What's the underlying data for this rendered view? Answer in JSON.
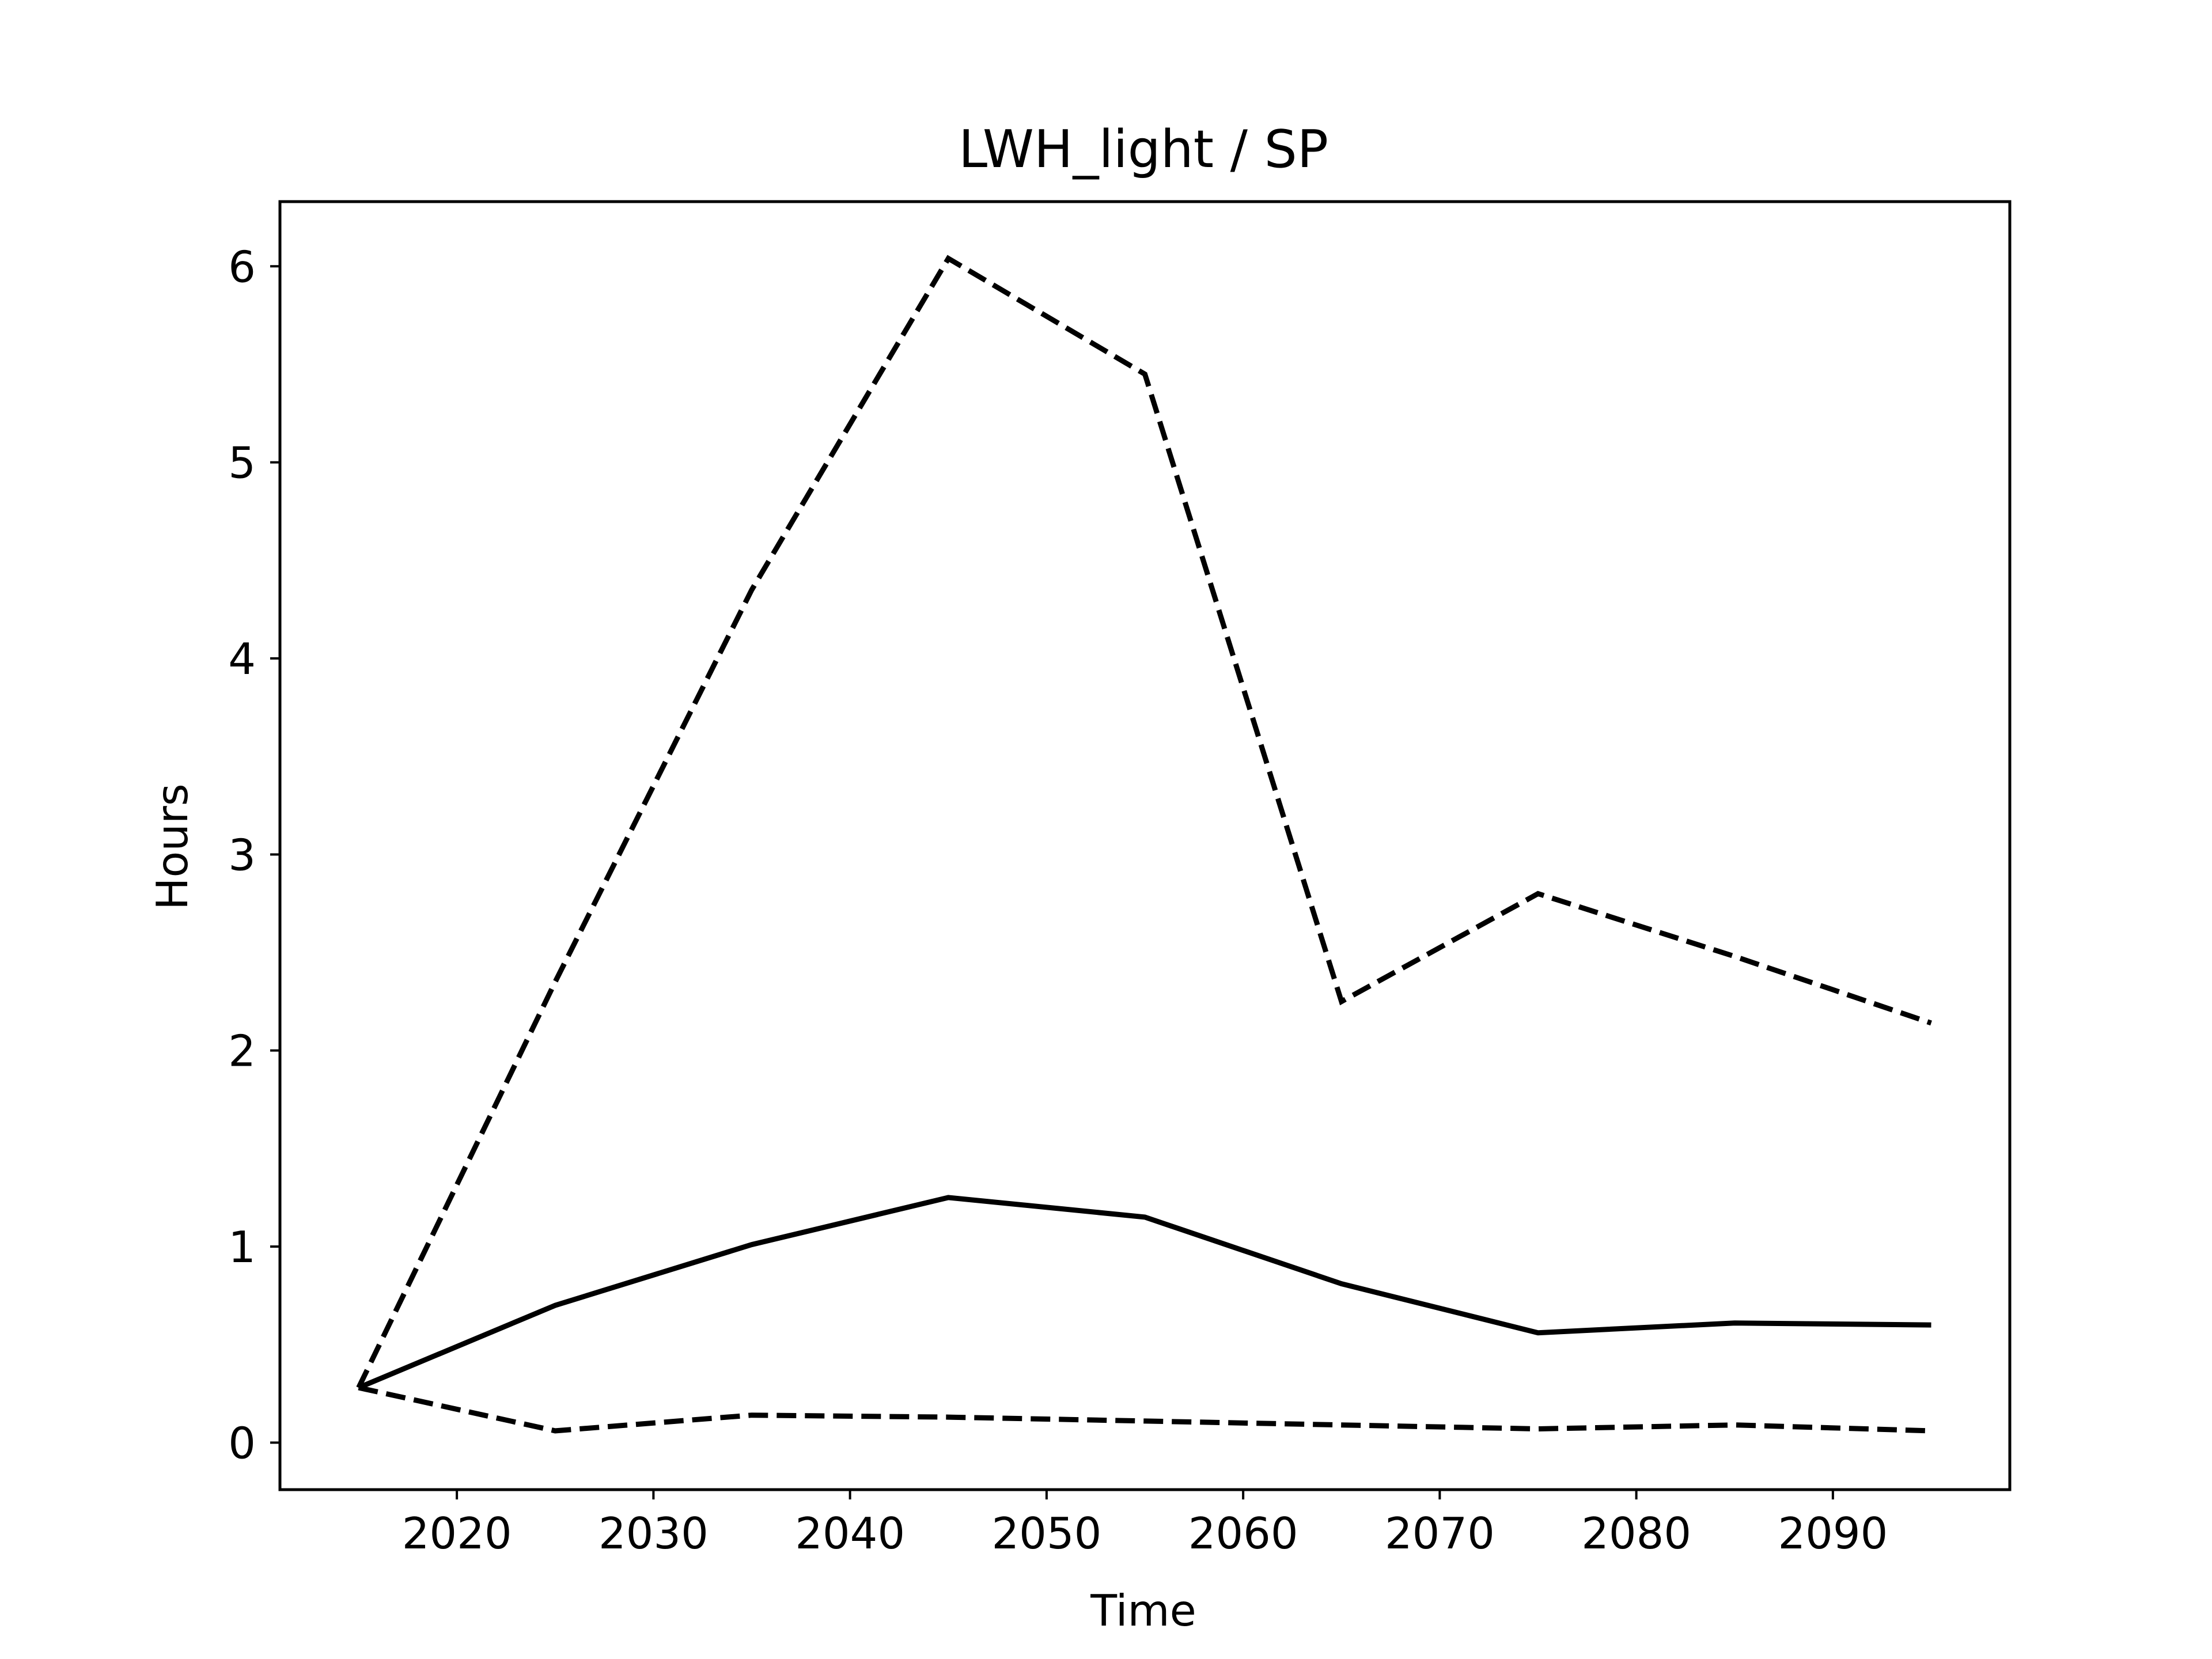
{
  "chart_data": {
    "type": "line",
    "title": "LWH_light / SP",
    "xlabel": "Time",
    "ylabel": "Hours",
    "xlim": [
      2011,
      2099
    ],
    "ylim": [
      -0.24,
      6.33
    ],
    "xticks": [
      2020,
      2030,
      2040,
      2050,
      2060,
      2070,
      2080,
      2090
    ],
    "yticks": [
      0,
      1,
      2,
      3,
      4,
      5,
      6
    ],
    "grid": false,
    "legend": "none",
    "x": [
      2015,
      2025,
      2035,
      2045,
      2055,
      2065,
      2075,
      2085,
      2095
    ],
    "series": [
      {
        "style": "solid",
        "color": "#000000",
        "values": [
          0.28,
          0.7,
          1.01,
          1.25,
          1.15,
          0.81,
          0.56,
          0.61,
          0.6
        ]
      },
      {
        "style": "dashed",
        "color": "#000000",
        "values": [
          0.28,
          2.35,
          4.35,
          6.04,
          5.45,
          2.25,
          2.8,
          2.48,
          2.14
        ]
      },
      {
        "style": "dashed",
        "color": "#000000",
        "values": [
          0.28,
          0.06,
          0.14,
          0.13,
          0.11,
          0.09,
          0.07,
          0.09,
          0.06
        ]
      }
    ]
  }
}
